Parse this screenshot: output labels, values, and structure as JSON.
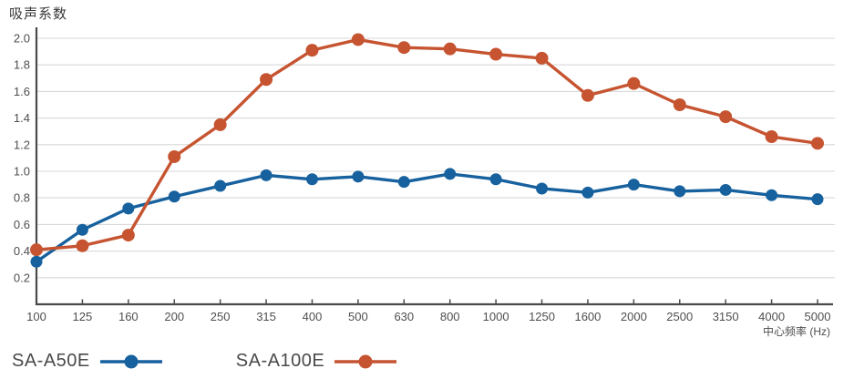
{
  "y_axis_title": "吸声系数",
  "x_axis_unit_label": "中心频率 (Hz)",
  "chart_data": {
    "type": "line",
    "x": [
      "100",
      "125",
      "160",
      "200",
      "250",
      "315",
      "400",
      "500",
      "630",
      "800",
      "1000",
      "1250",
      "1600",
      "2000",
      "2500",
      "3150",
      "4000",
      "5000"
    ],
    "series": [
      {
        "name": "SA-A50E",
        "color": "#16619E",
        "values": [
          0.32,
          0.56,
          0.72,
          0.81,
          0.89,
          0.97,
          0.94,
          0.96,
          0.92,
          0.98,
          0.94,
          0.87,
          0.84,
          0.9,
          0.85,
          0.86,
          0.82,
          0.79
        ]
      },
      {
        "name": "SA-A100E",
        "color": "#C65430",
        "values": [
          0.41,
          0.44,
          0.52,
          1.11,
          1.35,
          1.69,
          1.91,
          1.99,
          1.93,
          1.92,
          1.88,
          1.85,
          1.57,
          1.66,
          1.5,
          1.41,
          1.26,
          1.21
        ]
      }
    ],
    "title": "",
    "xlabel": "中心频率 (Hz)",
    "ylabel": "吸声系数",
    "ylim": [
      0,
      2.1
    ],
    "ytick_labels": [
      "0.2",
      "0.4",
      "0.6",
      "0.8",
      "1.0",
      "1.2",
      "1.4",
      "1.6",
      "1.8",
      "2.0"
    ],
    "grid": "horizontal",
    "legend_position": "bottom-left"
  },
  "colors": {
    "axis": "#4a4a4a",
    "gridline": "#d9d9d9",
    "tick_text": "#4e4e4e",
    "series_blue": "#16619E",
    "series_orange": "#C65430"
  }
}
